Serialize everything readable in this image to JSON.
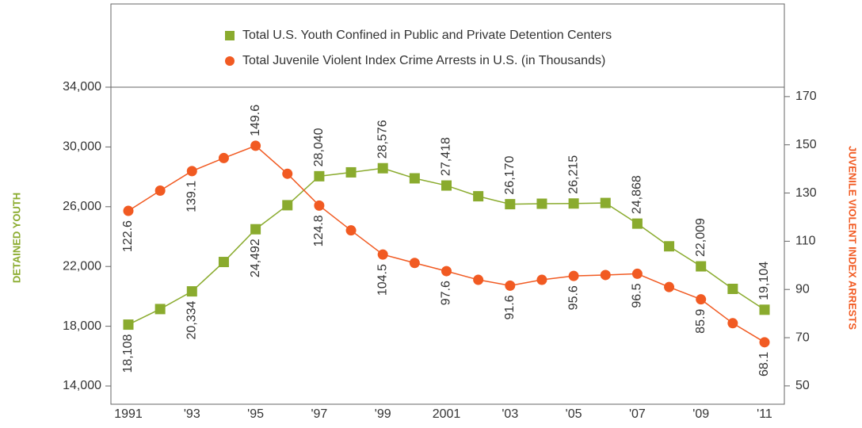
{
  "chart_data": {
    "type": "line",
    "categories": [
      "1991",
      null,
      "'93",
      null,
      "'95",
      null,
      "'97",
      null,
      "'99",
      null,
      "2001",
      null,
      "'03",
      null,
      "'05",
      null,
      "'07",
      null,
      "'09",
      null,
      "'11"
    ],
    "series": [
      {
        "name": "Total U.S. Youth Confined in Public and Private Detention Centers",
        "color": "#8aab2e",
        "marker": "square",
        "axis": "y",
        "values": [
          18108,
          19150,
          20334,
          22300,
          24492,
          26100,
          28040,
          28300,
          28576,
          27900,
          27418,
          26700,
          26170,
          26200,
          26215,
          26250,
          24868,
          23350,
          22009,
          20500,
          19104
        ],
        "value_labels": [
          "18,108",
          null,
          "20,334",
          null,
          "24,492",
          null,
          "28,040",
          null,
          "28,576",
          null,
          "27,418",
          null,
          "26,170",
          null,
          "26,215",
          null,
          "24,868",
          null,
          "22,009",
          null,
          "19,104"
        ]
      },
      {
        "name": "Total Juvenile Violent Index Crime Arrests in U.S. (in Thousands)",
        "color": "#f15a22",
        "marker": "circle",
        "axis": "y2",
        "values": [
          122.6,
          131,
          139.1,
          144.5,
          149.6,
          138,
          124.8,
          114.5,
          104.5,
          101,
          97.6,
          94,
          91.6,
          94,
          95.6,
          96,
          96.5,
          91,
          85.9,
          76,
          68.1
        ],
        "value_labels": [
          "122.6",
          null,
          "139.1",
          null,
          "149.6",
          null,
          "124.8",
          null,
          "104.5",
          null,
          "97.6",
          null,
          "91.6",
          null,
          "95.6",
          null,
          "96.5",
          null,
          "85.9",
          null,
          "68.1"
        ]
      }
    ],
    "y_label": "DETAINED YOUTH",
    "y2_label": "JUVENILE VIOLENT INDEX ARRESTS",
    "ylim": [
      12780,
      34000
    ],
    "yticks": [
      {
        "value": 14000,
        "label": "14,000"
      },
      {
        "value": 18000,
        "label": "18,000"
      },
      {
        "value": 22000,
        "label": "22,000"
      },
      {
        "value": 26000,
        "label": "26,000"
      },
      {
        "value": 30000,
        "label": "30,000"
      },
      {
        "value": 34000,
        "label": "34,000"
      }
    ],
    "y2lim": [
      42.4,
      173.9
    ],
    "y2ticks": [
      50,
      70,
      90,
      110,
      130,
      150,
      170
    ],
    "grid": false,
    "legend": "top"
  }
}
